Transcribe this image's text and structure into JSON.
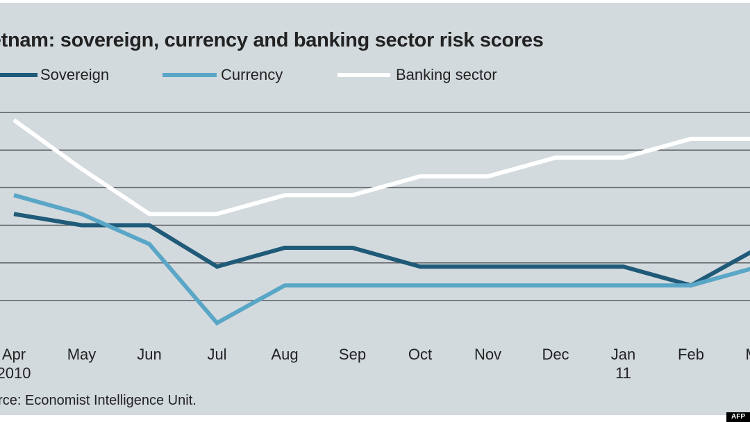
{
  "chart_data": {
    "type": "line",
    "title": "ietnam: sovereign, currency and banking sector risk scores",
    "source": "urce: Economist Intelligence Unit.",
    "categories": [
      "Apr",
      "May",
      "Jun",
      "Jul",
      "Aug",
      "Sep",
      "Oct",
      "Nov",
      "Dec",
      "Jan",
      "Feb",
      "Mar"
    ],
    "category_sublabels": [
      "2010",
      "",
      "",
      "",
      "",
      "",
      "",
      "",
      "",
      "11",
      "",
      ""
    ],
    "series": [
      {
        "name": "Sovereign",
        "color": "#1f5a78",
        "values": [
          4.6,
          4.0,
          4.0,
          1.8,
          2.8,
          2.8,
          1.8,
          1.8,
          1.8,
          1.8,
          0.8,
          2.8
        ]
      },
      {
        "name": "Currency",
        "color": "#5aa6c6",
        "values": [
          5.6,
          4.6,
          3.0,
          -1.2,
          0.8,
          0.8,
          0.8,
          0.8,
          0.8,
          0.8,
          0.8,
          1.8
        ]
      },
      {
        "name": "Banking sector",
        "color": "#ffffff",
        "values": [
          9.6,
          7.0,
          4.6,
          4.6,
          5.6,
          5.6,
          6.6,
          6.6,
          7.6,
          7.6,
          8.6,
          8.6
        ]
      }
    ],
    "ylim": [
      -2,
      11
    ],
    "grid": true,
    "legend": "top"
  },
  "credit": "AFP"
}
